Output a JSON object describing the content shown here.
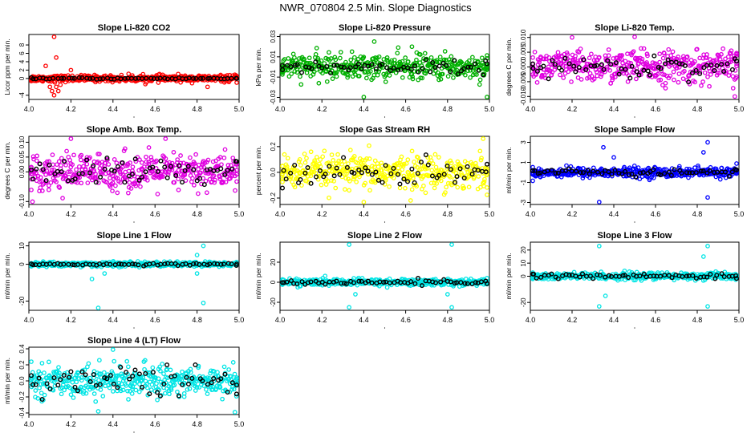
{
  "page_title": "NWR_070804  2.5 Min. Slope Diagnostics",
  "chart_data": [
    {
      "type": "scatter",
      "title": "Slope Li-820 CO2",
      "ylabel": "Licor ppm per min.",
      "color": "#ff0000",
      "xlim": [
        4.0,
        5.0
      ],
      "xticks": [
        "4.0",
        "4.2",
        "4.4",
        "4.6",
        "4.8",
        "5.0"
      ],
      "ylim": [
        -5,
        10.5
      ],
      "yticks": [
        {
          "v": -4,
          "label": "-4"
        },
        {
          "v": 0,
          "label": "0"
        },
        {
          "v": 2,
          "label": "2"
        },
        {
          "v": 4,
          "label": "4"
        },
        {
          "v": 6,
          "label": "6"
        },
        {
          "v": 8,
          "label": "8"
        }
      ],
      "spread": 0.7,
      "outliers": [
        [
          4.12,
          10
        ],
        [
          4.13,
          5
        ],
        [
          4.11,
          -3
        ],
        [
          4.12,
          -4
        ],
        [
          4.14,
          -3
        ],
        [
          4.15,
          -1.5
        ],
        [
          4.1,
          -2
        ],
        [
          4.08,
          3
        ],
        [
          4.13,
          -2
        ],
        [
          4.85,
          -2
        ],
        [
          4.2,
          2
        ]
      ],
      "black_spread": 0.15
    },
    {
      "type": "scatter",
      "title": "Slope Li-820 Pressure",
      "ylabel": "kPa per min.",
      "color": "#00b000",
      "xlim": [
        4.0,
        5.0
      ],
      "xticks": [
        "4.0",
        "4.2",
        "4.4",
        "4.6",
        "4.8",
        "5.0"
      ],
      "ylim": [
        -0.032,
        0.032
      ],
      "yticks": [
        {
          "v": -0.03,
          "label": "-0.03"
        },
        {
          "v": -0.01,
          "label": "-0.01"
        },
        {
          "v": 0.01,
          "label": "0.01"
        },
        {
          "v": 0.03,
          "label": "0.03"
        }
      ],
      "spread": 0.011,
      "outliers": [
        [
          4.4,
          -0.03
        ],
        [
          5.0,
          -0.03
        ],
        [
          4.45,
          0.025
        ],
        [
          4.63,
          0.02
        ]
      ],
      "black_spread": 0.005
    },
    {
      "type": "scatter",
      "title": "Slope Li-820 Temp.",
      "ylabel": "degrees C per min.",
      "color": "#e000e0",
      "xlim": [
        4.0,
        5.0
      ],
      "xticks": [
        "4.0",
        "4.2",
        "4.4",
        "4.6",
        "4.8",
        "5.0"
      ],
      "ylim": [
        -0.011,
        0.011
      ],
      "yticks": [
        {
          "v": -0.01,
          "label": "-0.010"
        },
        {
          "v": -0.005,
          "label": "-0.005"
        },
        {
          "v": 0,
          "label": "0.000"
        },
        {
          "v": 0.005,
          "label": "0.005"
        },
        {
          "v": 0.01,
          "label": "0.010"
        }
      ],
      "spread": 0.005,
      "outliers": [
        [
          4.2,
          0.01
        ],
        [
          4.5,
          0.011
        ],
        [
          4.98,
          -0.01
        ]
      ],
      "black_spread": 0.003
    },
    {
      "type": "scatter",
      "title": "Slope Amb. Box Temp.",
      "ylabel": "degrees C per min.",
      "color": "#e000e0",
      "xlim": [
        4.0,
        5.0
      ],
      "xticks": [
        "4.0",
        "4.2",
        "4.4",
        "4.6",
        "4.8",
        "5.0"
      ],
      "ylim": [
        -0.11,
        0.12
      ],
      "yticks": [
        {
          "v": -0.1,
          "label": "-0.10"
        },
        {
          "v": 0,
          "label": "0.00"
        },
        {
          "v": 0.05,
          "label": "0.05"
        },
        {
          "v": 0.1,
          "label": "0.10"
        }
      ],
      "spread": 0.055,
      "outliers": [
        [
          4.2,
          0.12
        ],
        [
          4.65,
          0.12
        ]
      ],
      "black_spread": 0.04
    },
    {
      "type": "scatter",
      "title": "Slope Gas Stream RH",
      "ylabel": "percent per min.",
      "color": "#ffff00",
      "xlim": [
        4.0,
        5.0
      ],
      "xticks": [
        "4.0",
        "4.2",
        "4.4",
        "4.6",
        "4.8",
        "5.0"
      ],
      "ylim": [
        -0.25,
        0.28
      ],
      "yticks": [
        {
          "v": -0.2,
          "label": "-0.2"
        },
        {
          "v": 0,
          "label": "0.0"
        },
        {
          "v": 0.2,
          "label": "0.2"
        }
      ],
      "spread": 0.12,
      "outliers": [
        [
          4.4,
          -0.25
        ],
        [
          4.97,
          0.28
        ]
      ],
      "black_spread": 0.08
    },
    {
      "type": "scatter",
      "title": "Slope Sample Flow",
      "ylabel": "ml/min per min.",
      "color": "#0000ff",
      "xlim": [
        4.0,
        5.0
      ],
      "xticks": [
        "4.0",
        "4.2",
        "4.4",
        "4.6",
        "4.8",
        "5.0"
      ],
      "ylim": [
        -3.2,
        3.6
      ],
      "yticks": [
        {
          "v": -3,
          "label": "-3"
        },
        {
          "v": -1,
          "label": "-1"
        },
        {
          "v": 1,
          "label": "1"
        },
        {
          "v": 3,
          "label": "3"
        }
      ],
      "spread": 0.45,
      "outliers": [
        [
          4.33,
          -3
        ],
        [
          4.35,
          2.5
        ],
        [
          4.85,
          3
        ],
        [
          4.85,
          -2.5
        ],
        [
          4.83,
          2
        ],
        [
          4.4,
          1.5
        ]
      ],
      "black_spread": 0.3
    },
    {
      "type": "scatter",
      "title": "Slope Line 1 Flow",
      "ylabel": "ml/min per min.",
      "color": "#00e5e5",
      "xlim": [
        4.0,
        5.0
      ],
      "xticks": [
        "4.0",
        "4.2",
        "4.4",
        "4.6",
        "4.8",
        "5.0"
      ],
      "ylim": [
        -25,
        12
      ],
      "yticks": [
        {
          "v": -20,
          "label": "-20"
        },
        {
          "v": 0,
          "label": "0"
        },
        {
          "v": 10,
          "label": "10"
        }
      ],
      "spread": 1.2,
      "outliers": [
        [
          4.33,
          -24
        ],
        [
          4.83,
          -21
        ],
        [
          4.83,
          10
        ],
        [
          4.3,
          -8
        ],
        [
          4.36,
          -5
        ],
        [
          4.8,
          -5
        ],
        [
          4.8,
          5
        ]
      ],
      "black_spread": 0.5
    },
    {
      "type": "scatter",
      "title": "Slope Line 2 Flow",
      "ylabel": "ml/min per min.",
      "color": "#00e5e5",
      "xlim": [
        4.0,
        5.0
      ],
      "xticks": [
        "4.0",
        "4.2",
        "4.4",
        "4.6",
        "4.8",
        "5.0"
      ],
      "ylim": [
        -28,
        40
      ],
      "yticks": [
        {
          "v": -20,
          "label": "-20"
        },
        {
          "v": 0,
          "label": "0"
        },
        {
          "v": 20,
          "label": "20"
        }
      ],
      "spread": 3,
      "outliers": [
        [
          4.33,
          38
        ],
        [
          4.33,
          -25
        ],
        [
          4.82,
          38
        ],
        [
          4.82,
          -25
        ],
        [
          4.36,
          -12
        ],
        [
          4.8,
          -12
        ]
      ],
      "black_spread": 2
    },
    {
      "type": "scatter",
      "title": "Slope Line 3 Flow",
      "ylabel": "ml/min per min.",
      "color": "#00e5e5",
      "xlim": [
        4.0,
        5.0
      ],
      "xticks": [
        "4.0",
        "4.2",
        "4.4",
        "4.6",
        "4.8",
        "5.0"
      ],
      "ylim": [
        -26,
        26
      ],
      "yticks": [
        {
          "v": -20,
          "label": "-20"
        },
        {
          "v": 0,
          "label": "0"
        },
        {
          "v": 10,
          "label": "10"
        },
        {
          "v": 20,
          "label": "20"
        }
      ],
      "spread": 2.5,
      "outliers": [
        [
          4.33,
          23
        ],
        [
          4.33,
          -23
        ],
        [
          4.85,
          23
        ],
        [
          4.85,
          -23
        ],
        [
          4.36,
          -15
        ],
        [
          4.83,
          15
        ]
      ],
      "black_spread": 1.5
    },
    {
      "type": "scatter",
      "title": "Slope Line 4 (LT) Flow",
      "ylabel": "ml/min per min.",
      "color": "#00e5e5",
      "xlim": [
        4.0,
        5.0
      ],
      "xticks": [
        "4.0",
        "4.2",
        "4.4",
        "4.6",
        "4.8",
        "5.0"
      ],
      "ylim": [
        -0.42,
        0.42
      ],
      "yticks": [
        {
          "v": -0.4,
          "label": "-0.4"
        },
        {
          "v": -0.2,
          "label": "-0.2"
        },
        {
          "v": 0,
          "label": "0.0"
        },
        {
          "v": 0.2,
          "label": "0.2"
        },
        {
          "v": 0.4,
          "label": "0.4"
        }
      ],
      "spread": 0.17,
      "outliers": [
        [
          4.33,
          -0.38
        ],
        [
          4.4,
          0.4
        ],
        [
          4.98,
          -0.4
        ]
      ],
      "black_spread": 0.15
    }
  ]
}
